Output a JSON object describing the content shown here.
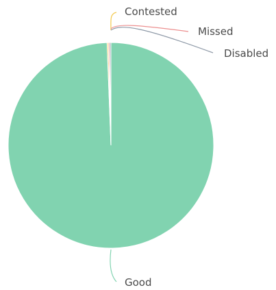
{
  "chart_data": {
    "type": "pie",
    "title": "",
    "slices": [
      {
        "label": "Good",
        "value": 99.4,
        "color": "#81d3b0"
      },
      {
        "label": "Contested",
        "value": 0.2,
        "color": "#f2c84b"
      },
      {
        "label": "Missed",
        "value": 0.2,
        "color": "#ec8f8f"
      },
      {
        "label": "Disabled",
        "value": 0.2,
        "color": "#8f9aa8"
      }
    ],
    "legend": "none",
    "labels": "outside-with-leader-lines"
  }
}
